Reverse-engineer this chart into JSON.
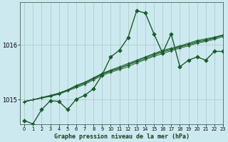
{
  "title": "Graphe pression niveau de la mer (hPa)",
  "bg_color": "#cde9f0",
  "grid_color": "#b0cccc",
  "line_color": "#1a5c2a",
  "xlim": [
    -0.5,
    23
  ],
  "ylim": [
    1014.55,
    1016.78
  ],
  "yticks": [
    1015,
    1016
  ],
  "xticks": [
    0,
    1,
    2,
    3,
    4,
    5,
    6,
    7,
    8,
    9,
    10,
    11,
    12,
    13,
    14,
    15,
    16,
    17,
    18,
    19,
    20,
    21,
    22,
    23
  ],
  "series_main": [
    1014.62,
    1014.56,
    1014.82,
    1014.98,
    1014.97,
    1014.82,
    1015.01,
    1015.08,
    1015.2,
    1015.45,
    1015.78,
    1015.9,
    1016.13,
    1016.62,
    1016.58,
    1016.2,
    1015.85,
    1016.2,
    1015.6,
    1015.72,
    1015.78,
    1015.72,
    1015.88,
    1015.88
  ],
  "series_linear": [
    [
      1014.96,
      1015.0,
      1015.04,
      1015.08,
      1015.12,
      1015.18,
      1015.26,
      1015.32,
      1015.4,
      1015.48,
      1015.54,
      1015.6,
      1015.66,
      1015.72,
      1015.78,
      1015.84,
      1015.9,
      1015.94,
      1015.98,
      1016.03,
      1016.08,
      1016.11,
      1016.14,
      1016.18
    ],
    [
      1014.97,
      1015.0,
      1015.04,
      1015.07,
      1015.11,
      1015.17,
      1015.24,
      1015.3,
      1015.38,
      1015.46,
      1015.52,
      1015.57,
      1015.63,
      1015.69,
      1015.75,
      1015.81,
      1015.87,
      1015.91,
      1015.96,
      1016.0,
      1016.05,
      1016.08,
      1016.12,
      1016.17
    ],
    [
      1014.97,
      1015.0,
      1015.03,
      1015.06,
      1015.1,
      1015.16,
      1015.22,
      1015.28,
      1015.36,
      1015.44,
      1015.5,
      1015.55,
      1015.6,
      1015.67,
      1015.73,
      1015.79,
      1015.84,
      1015.89,
      1015.94,
      1015.98,
      1016.03,
      1016.06,
      1016.1,
      1016.15
    ],
    [
      1014.96,
      1015.0,
      1015.03,
      1015.07,
      1015.12,
      1015.18,
      1015.25,
      1015.31,
      1015.39,
      1015.47,
      1015.53,
      1015.58,
      1015.64,
      1015.71,
      1015.77,
      1015.83,
      1015.88,
      1015.92,
      1015.97,
      1016.01,
      1016.06,
      1016.09,
      1016.13,
      1016.18
    ]
  ]
}
